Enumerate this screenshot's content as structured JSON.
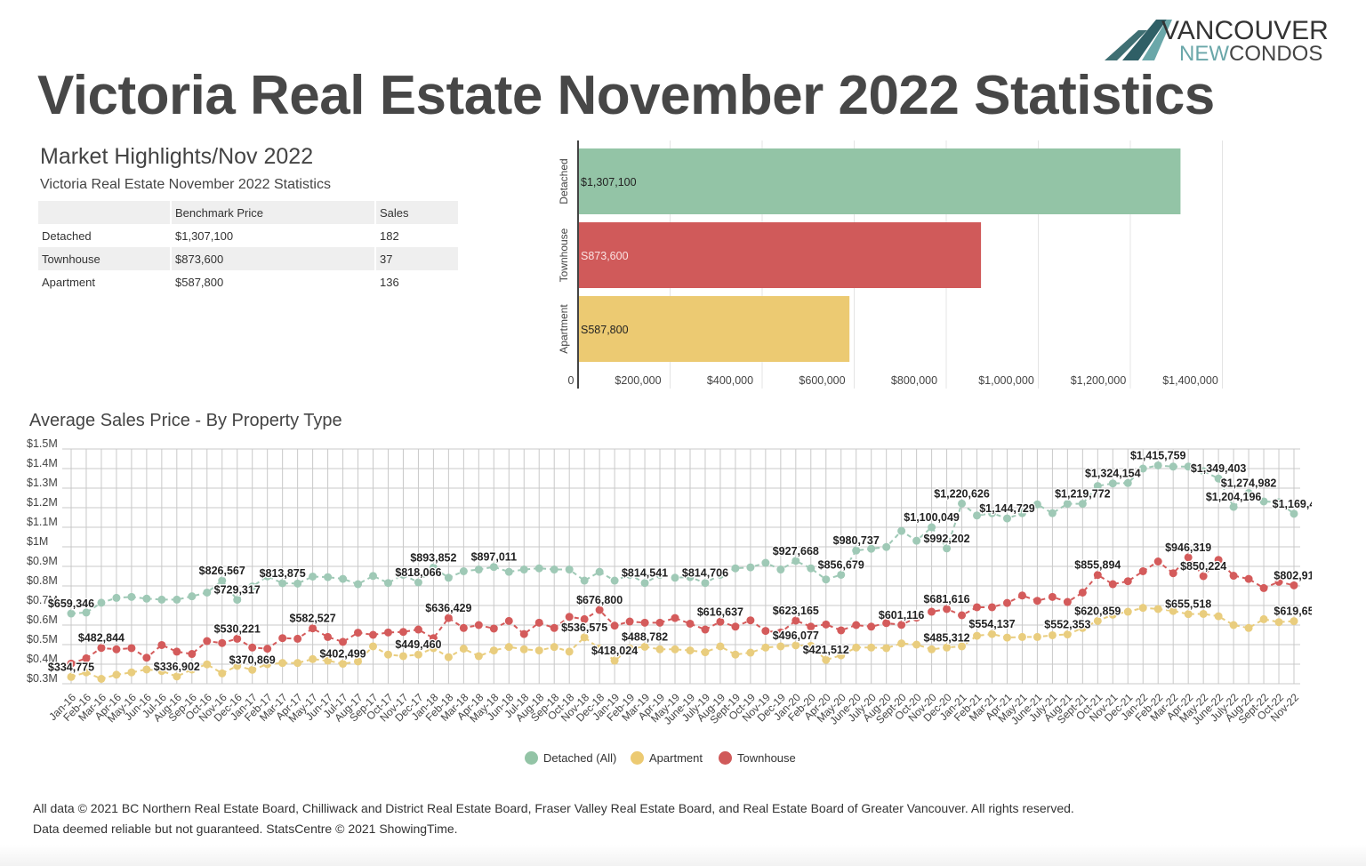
{
  "header": {
    "title": "Victoria Real Estate November 2022 Statistics",
    "logo": {
      "line1": "VANCOUVER",
      "line2_a": "NEW",
      "line2_b": "CONDOS"
    }
  },
  "highlights": {
    "title": "Market Highlights/Nov 2022",
    "subtitle": "Victoria Real Estate November 2022 Statistics",
    "columns": [
      "",
      "Benchmark Price",
      "Sales"
    ],
    "rows": [
      [
        "Detached",
        "$1,307,100",
        "182"
      ],
      [
        "Townhouse",
        "$873,600",
        "37"
      ],
      [
        "Apartment",
        "$587,800",
        "136"
      ]
    ]
  },
  "colors": {
    "detached": "#93c4a6",
    "townhouse": "#d05a5a",
    "apartment": "#ecca72",
    "detached_line": "#9fc9b6",
    "apartment_line": "#e9cd7e",
    "townhouse_line": "#d45b5b"
  },
  "legend": [
    {
      "label": "Detached (All)",
      "color": "#93c4a6"
    },
    {
      "label": "Apartment",
      "color": "#ecca72"
    },
    {
      "label": "Townhouse",
      "color": "#d05a5a"
    }
  ],
  "footer": {
    "line1": "All data © 2021 BC Northern Real Estate Board, Chilliwack and District Real Estate Board, Fraser Valley Real Estate Board, and Real Estate Board of Greater Vancouver. All rights reserved.",
    "line2": "Data deemed reliable but not guaranteed. StatsCentre © 2021 ShowingTime."
  },
  "chart_data": [
    {
      "type": "bar",
      "orientation": "horizontal",
      "categories": [
        "Detached",
        "Townhouse",
        "Apartment"
      ],
      "values": [
        1307100,
        873600,
        587800
      ],
      "data_labels": [
        "$1,307,100",
        "S873,600",
        "S587,800"
      ],
      "xlim": [
        0,
        1400000
      ],
      "x_ticks": [
        0,
        200000,
        400000,
        600000,
        800000,
        1000000,
        1200000,
        1400000
      ],
      "x_tick_labels": [
        "0",
        "$200,000",
        "$400,000",
        "$600,000",
        "$800,000",
        "$1,000,000",
        "$1,200,000",
        "$1,400,000"
      ],
      "grid": true
    },
    {
      "type": "line",
      "title": "Average Sales Price - By Property Type",
      "ylim": [
        0.3,
        1.5
      ],
      "y_ticks": [
        0.3,
        0.4,
        0.5,
        0.6,
        0.7,
        0.8,
        0.9,
        1.0,
        1.1,
        1.2,
        1.3,
        1.4,
        1.5
      ],
      "y_tick_labels": [
        "$0.3M",
        "$0.4M",
        "$0.5M",
        "$0.6M",
        "$0.7M",
        "$0.8M",
        "$0.9M",
        "$1M",
        "$1.1M",
        "$1.2M",
        "$1.3M",
        "$1.4M",
        "$1.5M"
      ],
      "y_unit": "millions CAD",
      "grid": true,
      "legend_position": "bottom",
      "x": [
        "Jan-16",
        "Feb-16",
        "Mar-16",
        "Apr-16",
        "May-16",
        "Jun-16",
        "Jul-16",
        "Aug-16",
        "Sep-16",
        "Oct-16",
        "Nov-16",
        "Dec-16",
        "Jan-17",
        "Feb-17",
        "Mar-17",
        "Apr-17",
        "May-17",
        "Jun-17",
        "Jul-17",
        "Aug-17",
        "Sep-17",
        "Oct-17",
        "Nov-17",
        "Dec-17",
        "Jan-18",
        "Feb-18",
        "Mar-18",
        "Apr-18",
        "May-18",
        "Jun-18",
        "Jul-18",
        "Aug-18",
        "Sep-18",
        "Oct-18",
        "Nov-18",
        "Dec-18",
        "Jan-19",
        "Feb-19",
        "Mar-19",
        "Apr-19",
        "May-19",
        "June-19",
        "July-19",
        "Aug-19",
        "Sept-19",
        "Oct-19",
        "Nov-19",
        "Dec-19",
        "Jan-20",
        "Feb-20",
        "Apr-20",
        "May-20",
        "June-20",
        "July-20",
        "Aug-20",
        "Sept-20",
        "Oct-20",
        "Nov-20",
        "Dec-20",
        "Jan-21",
        "Feb-21",
        "Mar-21",
        "Apr-21",
        "May-21",
        "June-21",
        "July-21",
        "Aug-21",
        "Sept-21",
        "Oct-21",
        "Nov-21",
        "Dec-21",
        "Jan-22",
        "Feb-22",
        "Mar-22",
        "Apr-22",
        "May-22",
        "June-22",
        "July-22",
        "Aug-22",
        "Sept-22",
        "Oct-22",
        "Nov-22"
      ],
      "series": [
        {
          "name": "Detached (All)",
          "key": "detached",
          "values": [
            0.659,
            0.664,
            0.714,
            0.739,
            0.744,
            0.735,
            0.73,
            0.73,
            0.747,
            0.766,
            0.827,
            0.729,
            0.797,
            0.849,
            0.814,
            0.812,
            0.848,
            0.845,
            0.836,
            0.809,
            0.851,
            0.815,
            0.857,
            0.818,
            0.894,
            0.842,
            0.875,
            0.884,
            0.897,
            0.872,
            0.884,
            0.89,
            0.884,
            0.884,
            0.827,
            0.872,
            0.827,
            0.857,
            0.815,
            0.857,
            0.842,
            0.845,
            0.815,
            0.857,
            0.89,
            0.895,
            0.918,
            0.884,
            0.928,
            0.89,
            0.833,
            0.857,
            0.981,
            0.99,
            0.999,
            1.081,
            1.031,
            1.1,
            0.992,
            1.221,
            1.16,
            1.172,
            1.145,
            1.172,
            1.217,
            1.172,
            1.22,
            1.22,
            1.311,
            1.324,
            1.326,
            1.4,
            1.416,
            1.41,
            1.41,
            1.387,
            1.349,
            1.204,
            1.275,
            1.232,
            1.228,
            1.169
          ]
        },
        {
          "name": "Apartment",
          "key": "apartment",
          "values": [
            0.335,
            0.358,
            0.325,
            0.346,
            0.358,
            0.373,
            0.365,
            0.337,
            0.373,
            0.399,
            0.353,
            0.391,
            0.371,
            0.4,
            0.406,
            0.406,
            0.426,
            0.418,
            0.402,
            0.414,
            0.491,
            0.449,
            0.441,
            0.449,
            0.482,
            0.436,
            0.479,
            0.441,
            0.47,
            0.488,
            0.476,
            0.47,
            0.488,
            0.464,
            0.537,
            0.48,
            0.418,
            0.48,
            0.489,
            0.476,
            0.476,
            0.47,
            0.461,
            0.491,
            0.449,
            0.459,
            0.485,
            0.491,
            0.496,
            0.494,
            0.422,
            0.445,
            0.485,
            0.485,
            0.482,
            0.506,
            0.5,
            0.476,
            0.485,
            0.491,
            0.545,
            0.554,
            0.536,
            0.539,
            0.539,
            0.548,
            0.552,
            0.585,
            0.621,
            0.653,
            0.668,
            0.688,
            0.682,
            0.672,
            0.656,
            0.657,
            0.645,
            0.6,
            0.585,
            0.63,
            0.615,
            0.62
          ]
        },
        {
          "name": "Townhouse",
          "key": "townhouse",
          "values": [
            0.403,
            0.43,
            0.483,
            0.476,
            0.482,
            0.433,
            0.498,
            0.464,
            0.452,
            0.518,
            0.508,
            0.53,
            0.485,
            0.479,
            0.533,
            0.53,
            0.583,
            0.539,
            0.514,
            0.561,
            0.55,
            0.562,
            0.565,
            0.577,
            0.533,
            0.636,
            0.585,
            0.6,
            0.582,
            0.621,
            0.554,
            0.612,
            0.585,
            0.642,
            0.63,
            0.677,
            0.597,
            0.618,
            0.612,
            0.612,
            0.636,
            0.607,
            0.577,
            0.617,
            0.592,
            0.624,
            0.57,
            0.562,
            0.623,
            0.592,
            0.603,
            0.573,
            0.6,
            0.592,
            0.61,
            0.601,
            0.638,
            0.668,
            0.682,
            0.65,
            0.691,
            0.691,
            0.713,
            0.751,
            0.724,
            0.744,
            0.718,
            0.766,
            0.856,
            0.809,
            0.824,
            0.875,
            0.925,
            0.865,
            0.946,
            0.85,
            0.933,
            0.852,
            0.836,
            0.789,
            0.821,
            0.803
          ]
        }
      ],
      "data_labels": [
        {
          "series": "detached",
          "x": "Jan-16",
          "text": "$659,346"
        },
        {
          "series": "detached",
          "x": "Nov-16",
          "text": "$826,567"
        },
        {
          "series": "detached",
          "x": "Dec-16",
          "text": "$729,317"
        },
        {
          "series": "detached",
          "x": "Mar-17",
          "text": "$813,875"
        },
        {
          "series": "detached",
          "x": "Dec-17",
          "text": "$818,066"
        },
        {
          "series": "detached",
          "x": "Jan-18",
          "text": "$893,852"
        },
        {
          "series": "detached",
          "x": "May-18",
          "text": "$897,011"
        },
        {
          "series": "detached",
          "x": "Mar-19",
          "text": "$814,541"
        },
        {
          "series": "detached",
          "x": "July-19",
          "text": "$814,706"
        },
        {
          "series": "detached",
          "x": "Jan-20",
          "text": "$927,668"
        },
        {
          "series": "detached",
          "x": "May-20",
          "text": "$856,679"
        },
        {
          "series": "detached",
          "x": "June-20",
          "text": "$980,737"
        },
        {
          "series": "detached",
          "x": "Nov-20",
          "text": "$1,100,049"
        },
        {
          "series": "detached",
          "x": "Dec-20",
          "text": "$992,202"
        },
        {
          "series": "detached",
          "x": "Jan-21",
          "text": "$1,220,626"
        },
        {
          "series": "detached",
          "x": "Apr-21",
          "text": "$1,144,729"
        },
        {
          "series": "detached",
          "x": "Sept-21",
          "text": "$1,219,772"
        },
        {
          "series": "detached",
          "x": "Nov-21",
          "text": "$1,324,154"
        },
        {
          "series": "detached",
          "x": "Feb-22",
          "text": "$1,415,759"
        },
        {
          "series": "detached",
          "x": "June-22",
          "text": "$1,349,403"
        },
        {
          "series": "detached",
          "x": "Aug-22",
          "text": "$1,274,982"
        },
        {
          "series": "detached",
          "x": "July-22",
          "text": "$1,204,196"
        },
        {
          "series": "detached",
          "x": "Nov-22",
          "text": "$1,169,4"
        },
        {
          "series": "townhouse",
          "x": "Mar-16",
          "text": "$482,844"
        },
        {
          "series": "townhouse",
          "x": "Dec-16",
          "text": "$530,221"
        },
        {
          "series": "townhouse",
          "x": "May-17",
          "text": "$582,527"
        },
        {
          "series": "townhouse",
          "x": "Feb-18",
          "text": "$636,429"
        },
        {
          "series": "townhouse",
          "x": "Dec-18",
          "text": "$676,800"
        },
        {
          "series": "townhouse",
          "x": "Aug-19",
          "text": "$616,637"
        },
        {
          "series": "townhouse",
          "x": "Jan-20",
          "text": "$623,165"
        },
        {
          "series": "townhouse",
          "x": "Sept-20",
          "text": "$601,116"
        },
        {
          "series": "townhouse",
          "x": "Dec-20",
          "text": "$681,616"
        },
        {
          "series": "townhouse",
          "x": "Oct-21",
          "text": "$855,894"
        },
        {
          "series": "townhouse",
          "x": "Apr-22",
          "text": "$946,319"
        },
        {
          "series": "townhouse",
          "x": "May-22",
          "text": "$850,224"
        },
        {
          "series": "townhouse",
          "x": "Nov-22",
          "text": "$802,91"
        },
        {
          "series": "apartment",
          "x": "Jan-16",
          "text": "$334,775"
        },
        {
          "series": "apartment",
          "x": "Aug-16",
          "text": "$336,902"
        },
        {
          "series": "apartment",
          "x": "Jan-17",
          "text": "$370,869"
        },
        {
          "series": "apartment",
          "x": "Jul-17",
          "text": "$402,499"
        },
        {
          "series": "apartment",
          "x": "Dec-17",
          "text": "$449,460"
        },
        {
          "series": "apartment",
          "x": "Nov-18",
          "text": "$536,575"
        },
        {
          "series": "apartment",
          "x": "Jan-19",
          "text": "$418,024"
        },
        {
          "series": "apartment",
          "x": "Mar-19",
          "text": "$488,782"
        },
        {
          "series": "apartment",
          "x": "Jan-20",
          "text": "$496,077"
        },
        {
          "series": "apartment",
          "x": "Apr-20",
          "text": "$421,512"
        },
        {
          "series": "apartment",
          "x": "Dec-20",
          "text": "$485,312"
        },
        {
          "series": "apartment",
          "x": "Mar-21",
          "text": "$554,137"
        },
        {
          "series": "apartment",
          "x": "Aug-21",
          "text": "$552,353"
        },
        {
          "series": "apartment",
          "x": "Oct-21",
          "text": "$620,859"
        },
        {
          "series": "apartment",
          "x": "Apr-22",
          "text": "$655,518"
        },
        {
          "series": "apartment",
          "x": "Nov-22",
          "text": "$619,65"
        }
      ]
    }
  ]
}
